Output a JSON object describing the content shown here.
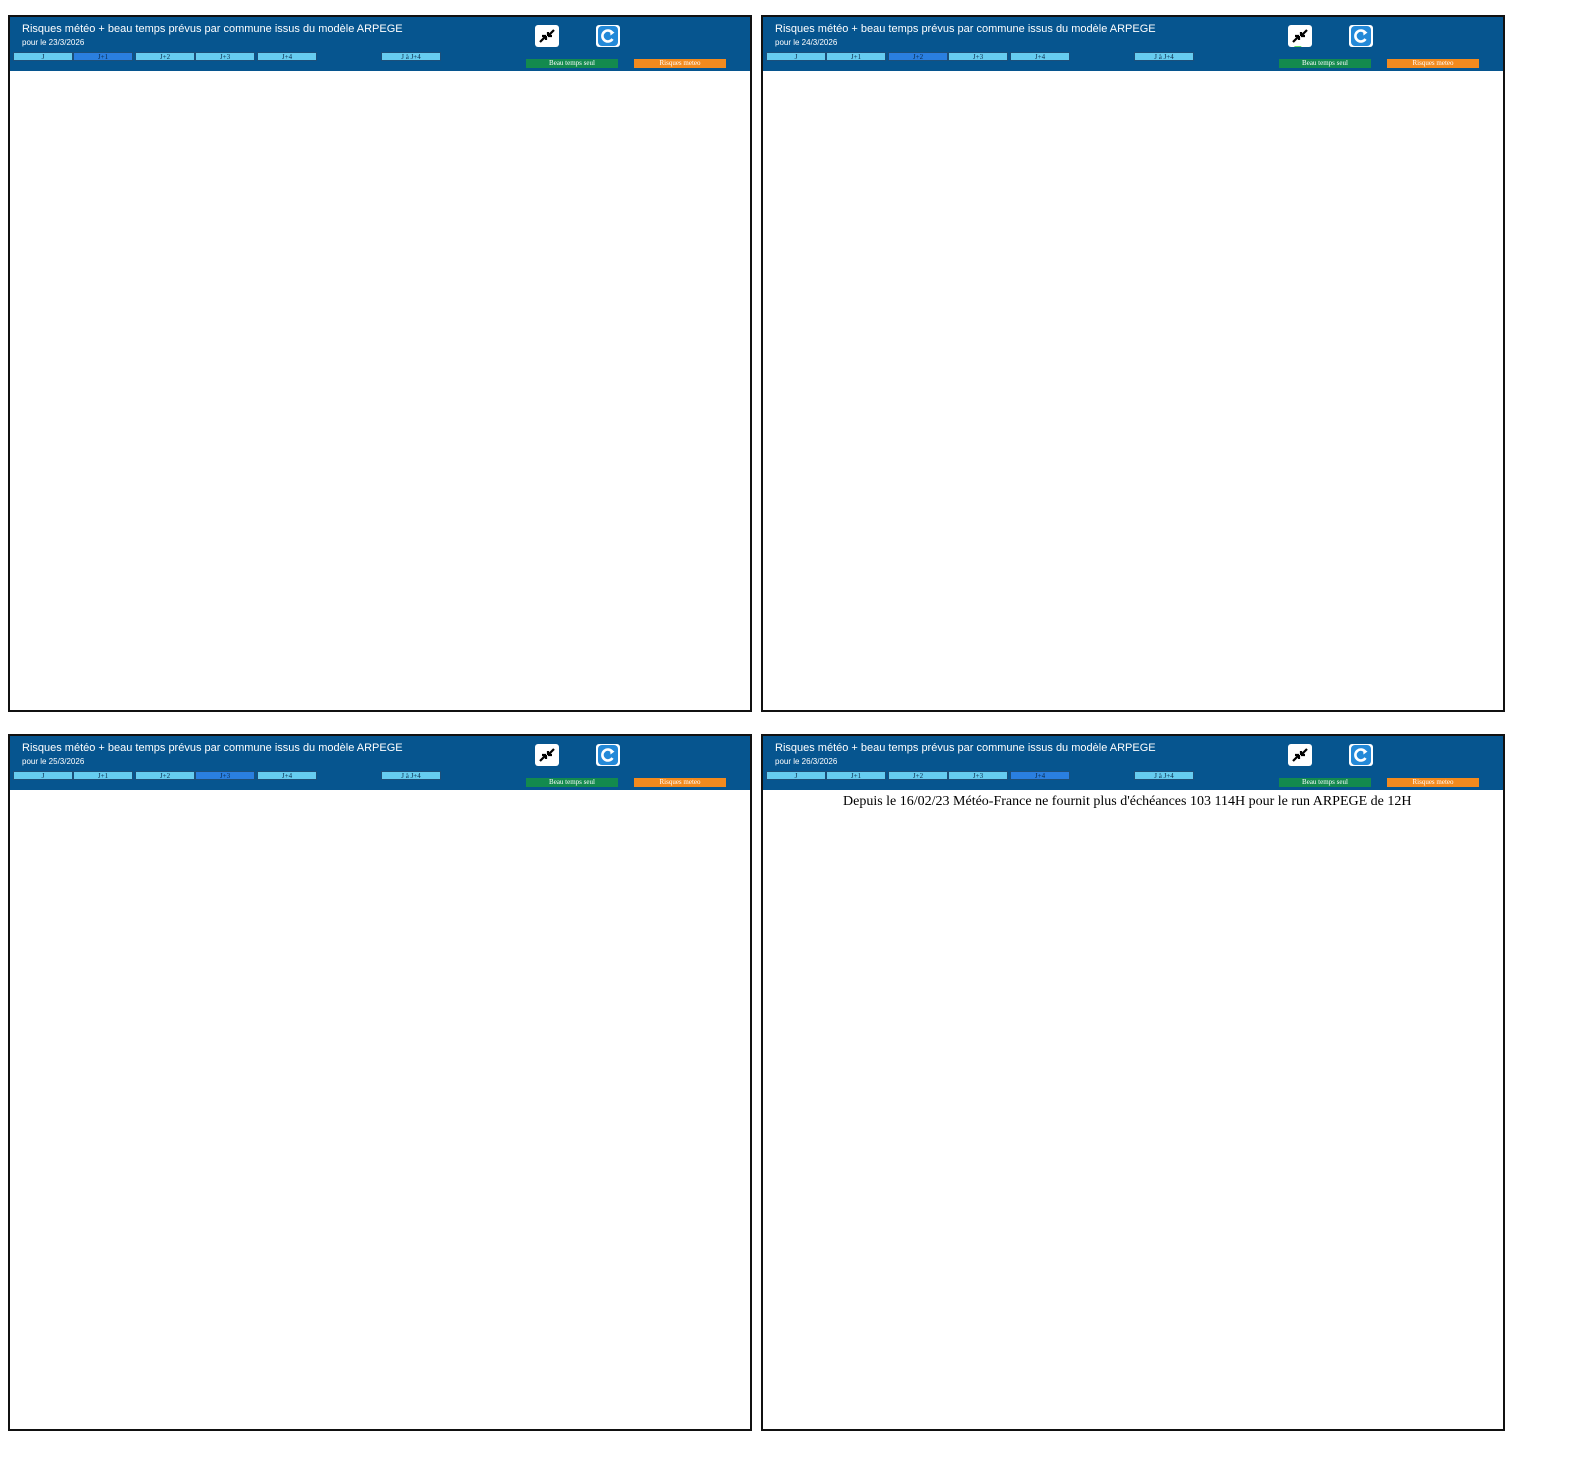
{
  "colors": {
    "header": "#06558f",
    "tab": "#66ccf0",
    "tab_active": "#2a7fe0",
    "beau_temps": "#138a4e",
    "risques": "#f28a1e",
    "green_light": "#22cc22",
    "green_dark": "#12a612",
    "risk_yellow": "#f2df3a",
    "risk_orange": "#e8631c",
    "river": "#4444dd",
    "border": "#a8a8c0"
  },
  "panels": [
    {
      "title": "Risques météo + beau temps prévus par commune issus du modèle ARPEGE",
      "subtitle": "pour le 23/3/2026",
      "active_tab": 1,
      "note": "",
      "style": "green1"
    },
    {
      "title": "Risques météo + beau temps prévus par commune issus du modèle ARPEGE",
      "subtitle": "pour le 24/3/2026",
      "active_tab": 2,
      "note": "",
      "style": "green2"
    },
    {
      "title": "Risques météo + beau temps prévus par commune issus du modèle ARPEGE",
      "subtitle": "pour le 25/3/2026",
      "active_tab": 3,
      "note": "",
      "style": "risk1"
    },
    {
      "title": "Risques météo + beau temps prévus par commune issus du modèle ARPEGE",
      "subtitle": "pour le 26/3/2026",
      "active_tab": 4,
      "note": "Depuis le 16/02/23 Météo-France ne fournit plus d'échéances 103 114H pour le run ARPEGE de 12H",
      "style": "risk2"
    }
  ],
  "tabs": [
    "J",
    "J+1",
    "J+2",
    "J+3",
    "J+4",
    "J à J+4"
  ],
  "buttons": {
    "beau_temps": "Beau temps seul",
    "risques": "Risques meteo"
  },
  "icons": {
    "collapse": "collapse-arrows-icon",
    "refresh": "refresh-icon"
  }
}
